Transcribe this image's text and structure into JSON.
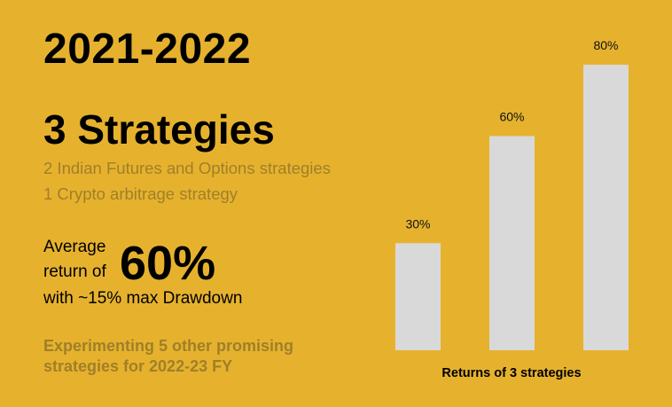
{
  "colors": {
    "background": "#E6B22E",
    "muted_text": "#A07F28",
    "bar_fill": "#D9D9D9",
    "primary_text": "#000000"
  },
  "header": {
    "year": "2021-2022",
    "title": "3 Strategies"
  },
  "details": {
    "line1": "2 Indian Futures and Options strategies",
    "line2": "1 Crypto arbitrage strategy"
  },
  "average": {
    "label_line1": "Average",
    "label_line2": "return of",
    "value": "60%",
    "drawdown": "with ~15% max Drawdown"
  },
  "footer": {
    "line1": "Experimenting 5 other promising",
    "line2": "strategies for 2022-23 FY"
  },
  "chart_data": {
    "type": "bar",
    "title": "Returns of 3 strategies",
    "categories": [
      "",
      "",
      ""
    ],
    "values": [
      30,
      60,
      80
    ],
    "value_labels": [
      "30%",
      "60%",
      "80%"
    ],
    "ylim": [
      0,
      100
    ],
    "grid": false,
    "legend": "none"
  }
}
